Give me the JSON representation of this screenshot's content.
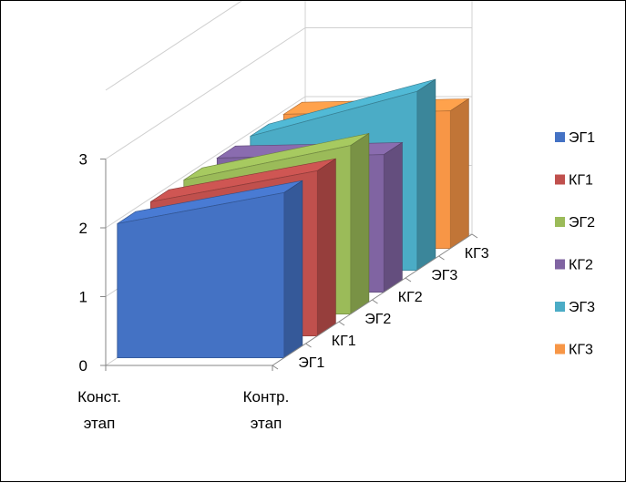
{
  "chart_data": {
    "type": "area",
    "chart_style": "3d",
    "categories": [
      "Конст. этап",
      "Контр. этап"
    ],
    "depth_categories": [
      "ЭГ1",
      "КГ1",
      "ЭГ2",
      "КГ2",
      "ЭГ3",
      "КГ3"
    ],
    "series": [
      {
        "name": "ЭГ1",
        "values": [
          1.95,
          2.4
        ],
        "color": "#4472C4"
      },
      {
        "name": "КГ1",
        "values": [
          1.95,
          2.4
        ],
        "color": "#C0504D"
      },
      {
        "name": "ЭГ2",
        "values": [
          1.95,
          2.45
        ],
        "color": "#9BBB59"
      },
      {
        "name": "КГ2",
        "values": [
          1.95,
          2.0
        ],
        "color": "#8064A2"
      },
      {
        "name": "ЭГ3",
        "values": [
          1.95,
          2.6
        ],
        "color": "#4BACC6"
      },
      {
        "name": "КГ3",
        "values": [
          1.95,
          2.0
        ],
        "color": "#F79646"
      }
    ],
    "y_ticks": [
      "0",
      "1",
      "2",
      "3"
    ],
    "ylim": [
      0,
      4
    ],
    "grid": true,
    "legend_position": "right"
  }
}
